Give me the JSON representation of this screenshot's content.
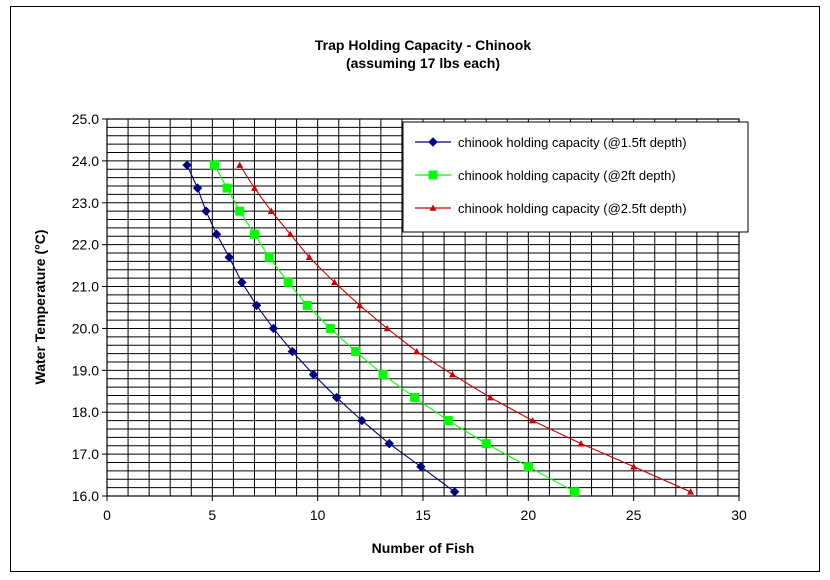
{
  "chart_data": {
    "type": "line",
    "title": "Trap Holding Capacity - Chinook",
    "subtitle": "(assuming 17 lbs each)",
    "xlabel": "Number of Fish",
    "ylabel": "Water Temperature (°C)",
    "xlim": [
      0,
      30
    ],
    "ylim": [
      16,
      25
    ],
    "x_ticks": [
      "0",
      "5",
      "10",
      "15",
      "20",
      "25",
      "30"
    ],
    "y_ticks": [
      "16.0",
      "17.0",
      "18.0",
      "19.0",
      "20.0",
      "21.0",
      "22.0",
      "23.0",
      "24.0",
      "25.0"
    ],
    "grid": true,
    "legend_position": "top-right",
    "series": [
      {
        "name": "chinook holding capacity (@1.5ft depth)",
        "color": "#000080",
        "marker": "diamond",
        "x": [
          3.8,
          4.3,
          4.7,
          5.2,
          5.8,
          6.4,
          7.1,
          7.9,
          8.8,
          9.8,
          10.9,
          12.1,
          13.4,
          14.9,
          16.5
        ],
        "y": [
          23.9,
          23.35,
          22.8,
          22.25,
          21.7,
          21.1,
          20.55,
          20.0,
          19.45,
          18.9,
          18.35,
          17.8,
          17.25,
          16.7,
          16.1
        ]
      },
      {
        "name": "chinook holding capacity (@2ft depth)",
        "color": "#00ff00",
        "marker": "square",
        "x": [
          5.1,
          5.7,
          6.3,
          7.0,
          7.7,
          8.6,
          9.5,
          10.6,
          11.8,
          13.1,
          14.6,
          16.2,
          18.0,
          20.0,
          22.2
        ],
        "y": [
          23.9,
          23.35,
          22.8,
          22.25,
          21.7,
          21.1,
          20.55,
          20.0,
          19.45,
          18.9,
          18.35,
          17.8,
          17.25,
          16.7,
          16.1
        ]
      },
      {
        "name": "chinook holding capacity (@2.5ft depth)",
        "color": "#cc0000",
        "marker": "triangle",
        "x": [
          6.3,
          7.0,
          7.8,
          8.7,
          9.6,
          10.8,
          12.0,
          13.3,
          14.7,
          16.4,
          18.2,
          20.2,
          22.5,
          25.0,
          27.7
        ],
        "y": [
          23.9,
          23.35,
          22.8,
          22.25,
          21.7,
          21.1,
          20.55,
          20.0,
          19.45,
          18.9,
          18.35,
          17.8,
          17.25,
          16.7,
          16.1
        ]
      }
    ]
  }
}
